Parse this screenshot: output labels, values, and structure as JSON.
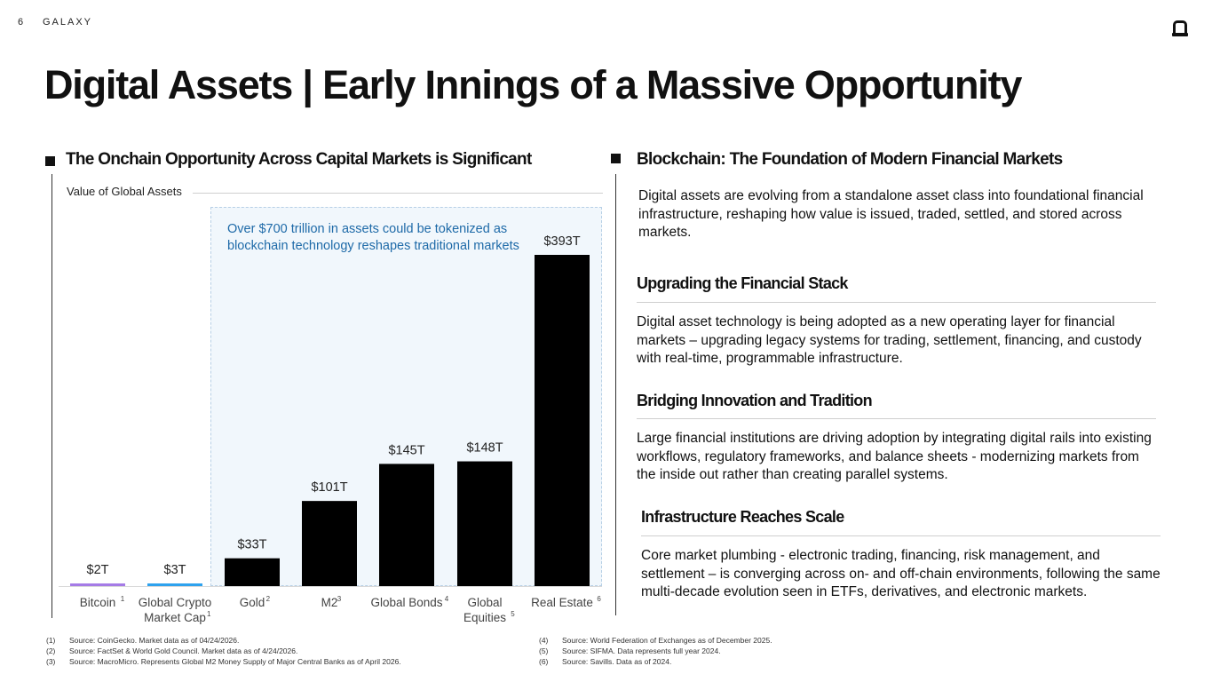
{
  "header": {
    "page_number": "6",
    "brand": "GALAXY",
    "logo_icon": "galaxy-logo-icon",
    "title": "Digital Assets | Early Innings of a Massive Opportunity"
  },
  "left": {
    "heading": "The Onchain Opportunity Across Capital Markets is Significant",
    "chart_caption": "Value of Global Assets",
    "callout": "Over $700 trillion in assets could be tokenized as blockchain technology reshapes traditional markets"
  },
  "chart_data": {
    "type": "bar",
    "title": "Value of Global Assets",
    "categories": [
      "Bitcoin",
      "Global Crypto Market Cap",
      "Gold",
      "M2",
      "Global Bonds",
      "Global Equities",
      "Real Estate"
    ],
    "category_lines": [
      [
        "Bitcoin"
      ],
      [
        "Global Crypto",
        "Market Cap"
      ],
      [
        "Gold"
      ],
      [
        "M2"
      ],
      [
        "Global Bonds"
      ],
      [
        "Global",
        "Equities"
      ],
      [
        "Real Estate"
      ]
    ],
    "footnote_refs": [
      "1",
      "1",
      "2",
      "3",
      "4",
      "5",
      "6"
    ],
    "values": [
      2,
      3,
      33,
      101,
      145,
      148,
      393
    ],
    "value_labels": [
      "$2T",
      "$3T",
      "$33T",
      "$101T",
      "$145T",
      "$148T",
      "$393T"
    ],
    "unit": "trillion USD",
    "colors": [
      "#a57be6",
      "#2ea2ee",
      "#000000",
      "#000000",
      "#000000",
      "#000000",
      "#000000"
    ],
    "ylim": [
      0,
      400
    ],
    "grid": false,
    "highlight_range": [
      "Gold",
      "Real Estate"
    ],
    "highlight_color": "#f1f7fc"
  },
  "right": {
    "heading": "Blockchain: The Foundation of Modern Financial Markets",
    "intro": "Digital assets are evolving from a standalone asset class into foundational financial infrastructure, reshaping how value is issued, traded, settled, and stored across markets.",
    "sections": [
      {
        "title": "Upgrading the Financial Stack",
        "body": "Digital asset technology is being adopted as a new operating layer for financial markets – upgrading legacy systems for trading, settlement, financing, and custody with real-time, programmable infrastructure."
      },
      {
        "title": "Bridging Innovation and Tradition",
        "body": "Large financial institutions are driving adoption by integrating digital rails into existing workflows, regulatory frameworks, and balance sheets - modernizing markets from the inside out rather than creating parallel systems."
      },
      {
        "title": "Infrastructure Reaches Scale",
        "body": "Core market plumbing - electronic trading, financing, risk management, and settlement – is converging across on- and off-chain environments, following the same multi-decade evolution seen in ETFs, derivatives, and electronic markets."
      }
    ]
  },
  "footnotes": [
    {
      "num": "(1)",
      "text": "Source: CoinGecko. Market data as of 04/24/2026."
    },
    {
      "num": "(2)",
      "text": "Source: FactSet & World Gold Council. Market data as of 4/24/2026."
    },
    {
      "num": "(3)",
      "text": "Source: MacroMicro. Represents Global M2 Money Supply of Major Central Banks as of April 2026."
    },
    {
      "num": "(4)",
      "text": "Source: World Federation of Exchanges as of December 2025."
    },
    {
      "num": "(5)",
      "text": "Source: SIFMA. Data represents full year 2024."
    },
    {
      "num": "(6)",
      "text": "Source: Savills. Data as of 2024."
    }
  ]
}
